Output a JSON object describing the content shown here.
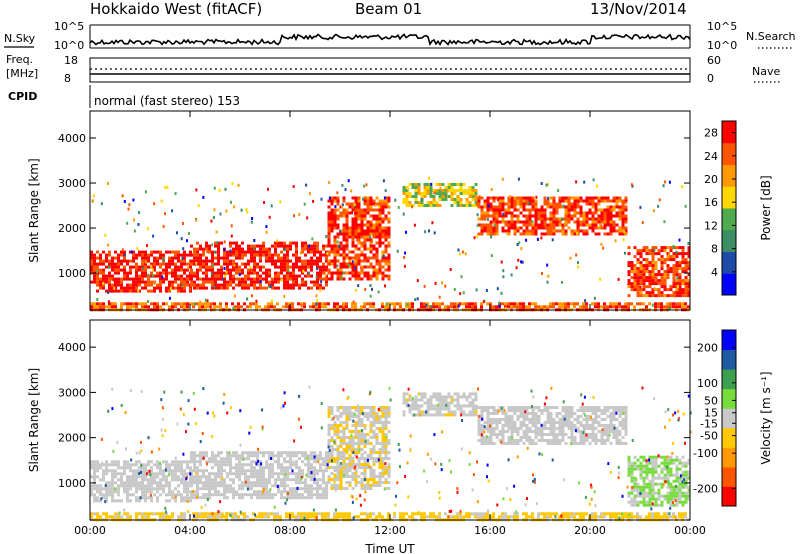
{
  "header": {
    "station": "Hokkaido West (fitACF)",
    "beam": "Beam 01",
    "date": "13/Nov/2014"
  },
  "noise_panel": {
    "left_label": "N.Sky",
    "right_label": "N.Search",
    "left_ticks": [
      "10^5",
      "10^0"
    ],
    "right_ticks": [
      "10^5",
      "10^0"
    ]
  },
  "freq_panel": {
    "left_label_line1": "Freq.",
    "left_label_line2": "[MHz]",
    "right_label": "Nave",
    "left_ticks": [
      "18",
      "8"
    ],
    "right_ticks": [
      "60",
      "0"
    ]
  },
  "cpid_panel": {
    "label": "CPID",
    "text": "normal (fast stereo) 153"
  },
  "chart_data": [
    {
      "type": "heatmap",
      "title": "",
      "ylabel": "Slant Range [km]",
      "xlabel": "",
      "ylim": [
        180,
        4600
      ],
      "y_ticks": [
        1000,
        2000,
        3000,
        4000
      ],
      "x_ticks": [
        "00:00",
        "04:00",
        "08:00",
        "12:00",
        "16:00",
        "20:00",
        "00:00"
      ],
      "colorbar": {
        "label": "Power [dB]",
        "ticks": [
          4,
          8,
          12,
          16,
          20,
          24,
          28
        ],
        "range": [
          0,
          30
        ],
        "colors": [
          "#0000ff",
          "#1e4ba8",
          "#3c8c64",
          "#50aa50",
          "#ffd700",
          "#ff9900",
          "#ff5500",
          "#ff0000"
        ]
      },
      "regions": [
        {
          "t0": 0.0,
          "t1": 4.0,
          "r0": 600,
          "r1": 1500,
          "level": 28
        },
        {
          "t0": 4.0,
          "t1": 9.5,
          "r0": 700,
          "r1": 1700,
          "level": 28
        },
        {
          "t0": 9.5,
          "t1": 12.0,
          "r0": 900,
          "r1": 2700,
          "level": 26
        },
        {
          "t0": 12.5,
          "t1": 15.5,
          "r0": 2500,
          "r1": 3000,
          "level": 16
        },
        {
          "t0": 15.5,
          "t1": 21.5,
          "r0": 1900,
          "r1": 2700,
          "level": 26
        },
        {
          "t0": 21.5,
          "t1": 24.0,
          "r0": 500,
          "r1": 1600,
          "level": 26
        },
        {
          "t0": 0.0,
          "t1": 24.0,
          "r0": 180,
          "r1": 350,
          "level": 24
        }
      ]
    },
    {
      "type": "heatmap",
      "title": "",
      "ylabel": "Slant Range [km]",
      "xlabel": "Time UT",
      "ylim": [
        180,
        4600
      ],
      "y_ticks": [
        1000,
        2000,
        3000,
        4000
      ],
      "x_ticks": [
        "00:00",
        "04:00",
        "08:00",
        "12:00",
        "16:00",
        "20:00",
        "00:00"
      ],
      "colorbar": {
        "label": "Velocity [m s⁻¹]",
        "ticks": [
          200,
          100,
          50,
          15,
          -15,
          -50,
          -100,
          -200
        ],
        "range": [
          -250,
          250
        ],
        "colors": [
          "#ff0000",
          "#ff5500",
          "#ff9900",
          "#ffc800",
          "#c8c8c8",
          "#78dc3c",
          "#3ca050",
          "#1e5aa0",
          "#0000ff"
        ]
      },
      "regions": [
        {
          "t0": 0.0,
          "t1": 4.0,
          "r0": 600,
          "r1": 1500,
          "level": 0
        },
        {
          "t0": 4.0,
          "t1": 9.5,
          "r0": 700,
          "r1": 1700,
          "level": 0
        },
        {
          "t0": 9.5,
          "t1": 12.0,
          "r0": 900,
          "r1": 2700,
          "level": -20
        },
        {
          "t0": 12.5,
          "t1": 15.5,
          "r0": 2500,
          "r1": 3000,
          "level": -10
        },
        {
          "t0": 15.5,
          "t1": 21.5,
          "r0": 1900,
          "r1": 2700,
          "level": 0
        },
        {
          "t0": 21.5,
          "t1": 24.0,
          "r0": 500,
          "r1": 1600,
          "level": 30
        },
        {
          "t0": 0.0,
          "t1": 24.0,
          "r0": 180,
          "r1": 350,
          "level": -40
        }
      ]
    }
  ]
}
